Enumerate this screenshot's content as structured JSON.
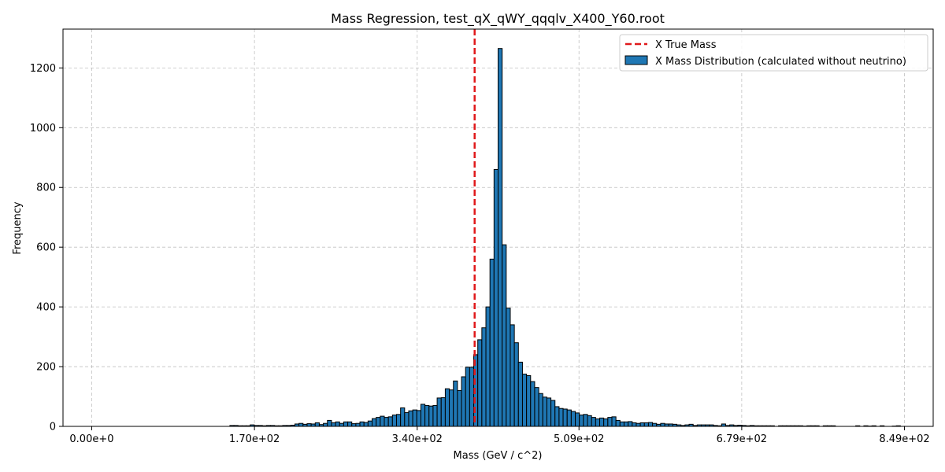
{
  "chart_data": {
    "type": "bar",
    "title": "Mass Regression, test_qX_qWY_qqqlv_X400_Y60.root",
    "xlabel": "Mass (GeV / c^2)",
    "ylabel": "Frequency",
    "xlim": [
      -30,
      879
    ],
    "ylim": [
      0,
      1330
    ],
    "x_ticks": [
      0,
      170,
      340,
      509,
      679,
      849
    ],
    "x_tick_labels": [
      "0.00e+0",
      "1.70e+02",
      "3.40e+02",
      "5.09e+02",
      "6.79e+02",
      "8.49e+02"
    ],
    "y_ticks": [
      0,
      200,
      400,
      600,
      800,
      1000,
      1200
    ],
    "y_tick_labels": [
      "0",
      "200",
      "400",
      "600",
      "800",
      "1000",
      "1200"
    ],
    "grid": true,
    "legend_position": "top-right",
    "bin_width": 4.245,
    "true_mass_line": {
      "name": "X True Mass",
      "x": 400,
      "color": "#e0191b"
    },
    "series": [
      {
        "name": "X Mass Distribution (calculated without neutrino)",
        "color": "#1f77b4",
        "values": [
          0,
          0,
          0,
          0,
          0,
          0,
          0,
          0,
          0,
          0,
          0,
          0,
          0,
          0,
          0,
          0,
          0,
          0,
          0,
          0,
          0,
          0,
          0,
          0,
          0,
          0,
          0,
          0,
          0,
          0,
          0,
          0,
          0,
          0,
          3,
          3,
          2,
          2,
          2,
          5,
          3,
          3,
          2,
          3,
          3,
          2,
          2,
          3,
          3,
          4,
          8,
          10,
          7,
          9,
          8,
          12,
          6,
          10,
          20,
          12,
          15,
          10,
          15,
          15,
          9,
          10,
          15,
          13,
          18,
          26,
          30,
          34,
          30,
          32,
          38,
          40,
          62,
          46,
          52,
          55,
          53,
          74,
          70,
          68,
          70,
          95,
          96,
          126,
          122,
          152,
          120,
          166,
          198,
          198,
          240,
          290,
          330,
          400,
          560,
          860,
          1265,
          608,
          396,
          340,
          280,
          215,
          175,
          170,
          150,
          130,
          110,
          98,
          95,
          87,
          66,
          60,
          58,
          55,
          50,
          45,
          38,
          40,
          36,
          30,
          25,
          28,
          25,
          30,
          32,
          20,
          15,
          15,
          16,
          12,
          10,
          12,
          12,
          13,
          10,
          7,
          10,
          8,
          8,
          7,
          5,
          3,
          5,
          7,
          3,
          5,
          5,
          5,
          5,
          3,
          2,
          8,
          3,
          5,
          3,
          4,
          3,
          2,
          3,
          2,
          2,
          2,
          2,
          2,
          0,
          2,
          2,
          2,
          2,
          2,
          2,
          1,
          2,
          2,
          2,
          0,
          2,
          2,
          2,
          0,
          0,
          0,
          0,
          0,
          2,
          0,
          2,
          1,
          2,
          0,
          2,
          0,
          0,
          1,
          2
        ]
      }
    ]
  }
}
